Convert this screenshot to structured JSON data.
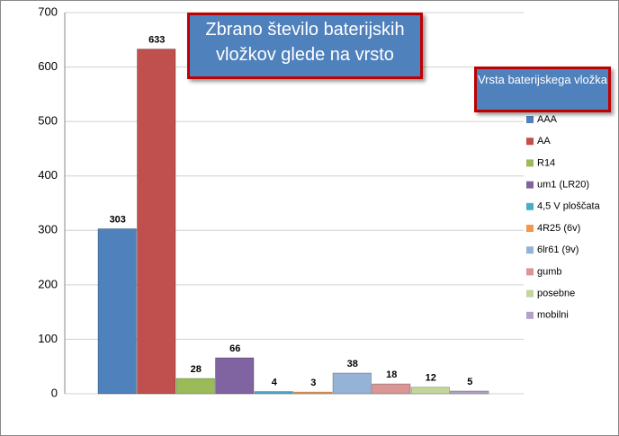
{
  "chart_data": {
    "type": "bar",
    "title": "Zbrano število baterijskih vložkov glede na vrsto",
    "legend_title": "Vrsta baterijskega vložka",
    "legend": "right",
    "grid": true,
    "ylim": [
      0,
      700
    ],
    "yticks": [
      0,
      100,
      200,
      300,
      400,
      500,
      600,
      700
    ],
    "series": [
      {
        "name": "AAA",
        "color": "#4f81bd",
        "values": [
          303
        ]
      },
      {
        "name": "AA",
        "color": "#c0504d",
        "values": [
          633
        ]
      },
      {
        "name": "R14",
        "color": "#9bbb59",
        "values": [
          28
        ]
      },
      {
        "name": "um1 (LR20)",
        "color": "#8064a2",
        "values": [
          66
        ]
      },
      {
        "name": "4,5 V ploščata",
        "color": "#4bacc6",
        "values": [
          4
        ]
      },
      {
        "name": "4R25 (6v)",
        "color": "#f79646",
        "values": [
          3
        ]
      },
      {
        "name": "6lr61 (9v)",
        "color": "#95b3d7",
        "values": [
          38
        ]
      },
      {
        "name": "gumb",
        "color": "#d99694",
        "values": [
          18
        ]
      },
      {
        "name": "posebne",
        "color": "#c3d69b",
        "values": [
          12
        ]
      },
      {
        "name": "mobilni",
        "color": "#b2a2c7",
        "values": [
          5
        ]
      }
    ]
  }
}
